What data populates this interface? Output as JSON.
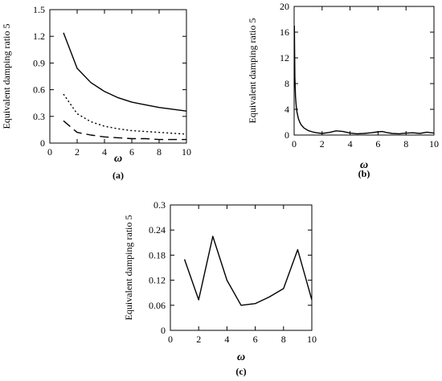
{
  "chart_data": [
    {
      "type": "line",
      "panel_label": "(a)",
      "xlabel": "ω",
      "ylabel": "Equivalent damping ratio 5",
      "xlim": [
        0,
        10
      ],
      "ylim": [
        0,
        1.5
      ],
      "x_ticks": [
        "0",
        "2",
        "4",
        "6",
        "8",
        "10"
      ],
      "y_ticks": [
        "0",
        "0.3",
        "0.6",
        "0.9",
        "1.2",
        "1.5"
      ],
      "grid": false,
      "series": [
        {
          "style": "solid",
          "x": [
            1,
            2,
            3,
            4,
            5,
            6,
            7,
            8,
            9,
            10
          ],
          "values": [
            1.24,
            0.84,
            0.68,
            0.58,
            0.51,
            0.46,
            0.43,
            0.4,
            0.38,
            0.36
          ]
        },
        {
          "style": "dotted",
          "x": [
            1,
            2,
            3,
            4,
            5,
            6,
            7,
            8,
            9,
            10
          ],
          "values": [
            0.55,
            0.33,
            0.24,
            0.19,
            0.16,
            0.14,
            0.13,
            0.12,
            0.11,
            0.1
          ]
        },
        {
          "style": "dashed",
          "x": [
            1,
            2,
            3,
            4,
            5,
            6,
            7,
            8,
            9,
            10
          ],
          "values": [
            0.25,
            0.12,
            0.09,
            0.07,
            0.06,
            0.05,
            0.05,
            0.04,
            0.04,
            0.04
          ]
        }
      ]
    },
    {
      "type": "line",
      "panel_label": "(b)",
      "xlabel": "ω",
      "ylabel": "Equivalent damping ratio 5",
      "xlim": [
        0,
        10
      ],
      "ylim": [
        0,
        20
      ],
      "x_ticks": [
        "0",
        "2",
        "4",
        "6",
        "8",
        "10"
      ],
      "y_ticks": [
        "0",
        "4",
        "8",
        "12",
        "16",
        "20"
      ],
      "grid": false,
      "series": [
        {
          "style": "solid",
          "x": [
            0.02,
            0.05,
            0.1,
            0.15,
            0.2,
            0.3,
            0.4,
            0.5,
            0.7,
            1.0,
            1.3,
            1.6,
            2.0,
            2.5,
            3.0,
            3.5,
            4.0,
            4.5,
            5.0,
            5.5,
            6.0,
            6.3,
            6.6,
            7.0,
            7.5,
            8.0,
            8.5,
            9.0,
            9.5,
            10.0
          ],
          "values": [
            17.0,
            9.0,
            6.0,
            4.5,
            3.6,
            2.6,
            2.0,
            1.6,
            1.1,
            0.7,
            0.5,
            0.35,
            0.25,
            0.4,
            0.65,
            0.55,
            0.3,
            0.2,
            0.25,
            0.35,
            0.5,
            0.55,
            0.4,
            0.25,
            0.2,
            0.3,
            0.35,
            0.25,
            0.45,
            0.3
          ]
        }
      ]
    },
    {
      "type": "line",
      "panel_label": "(c)",
      "xlabel": "ω",
      "ylabel": "Equivalent damping ratio 5",
      "xlim": [
        0,
        10
      ],
      "ylim": [
        0,
        0.3
      ],
      "x_ticks": [
        "0",
        "2",
        "4",
        "6",
        "8",
        "10"
      ],
      "y_ticks": [
        "0",
        "0.06",
        "0.12",
        "0.18",
        "0.24",
        "0.3"
      ],
      "grid": false,
      "series": [
        {
          "style": "solid",
          "x": [
            1,
            2,
            3,
            4,
            5,
            6,
            7,
            8,
            9,
            10
          ],
          "values": [
            0.17,
            0.073,
            0.225,
            0.12,
            0.06,
            0.064,
            0.08,
            0.1,
            0.193,
            0.073
          ]
        }
      ]
    }
  ]
}
